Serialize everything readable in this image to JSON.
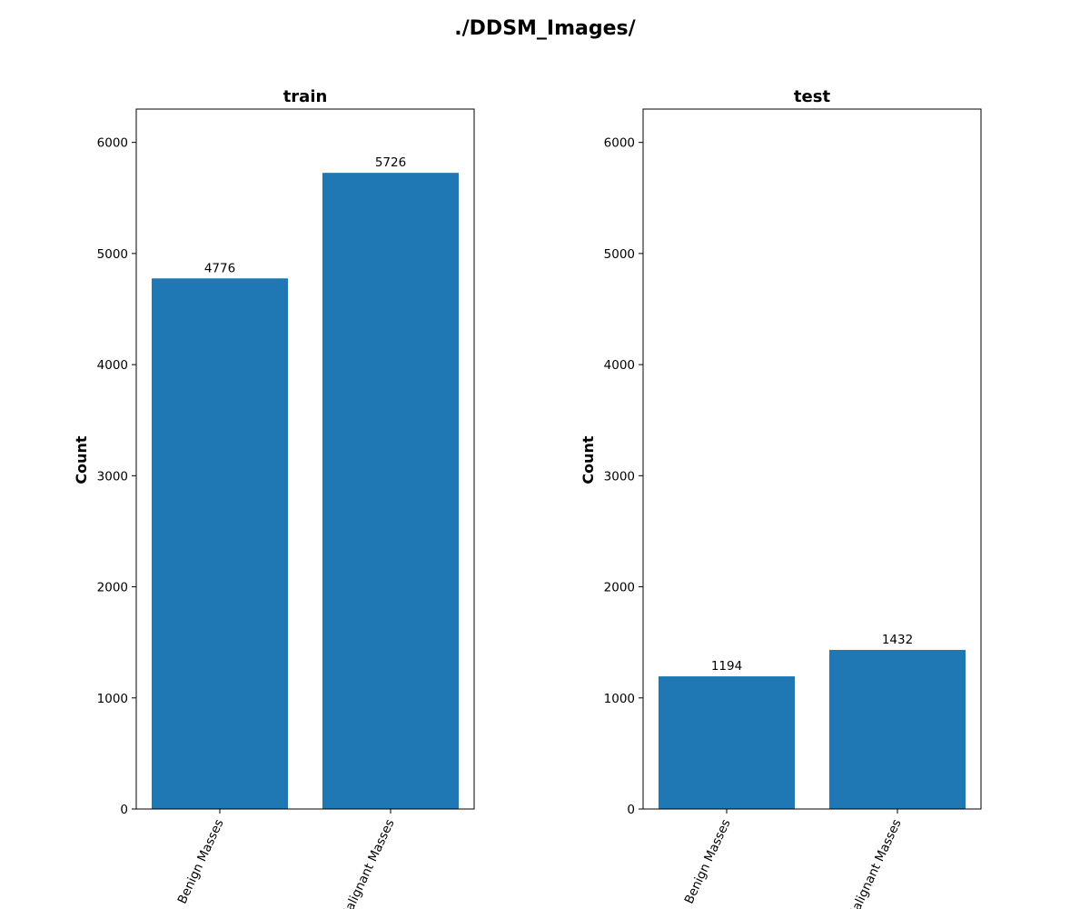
{
  "figure": {
    "suptitle": "./DDSM_Images/"
  },
  "chart_data": [
    {
      "type": "bar",
      "title": "train",
      "xlabel": "",
      "ylabel": "Count",
      "categories": [
        "Benign Masses",
        "Malignant Masses"
      ],
      "values": [
        4776,
        5726
      ],
      "data_labels": [
        "4776",
        "5726"
      ],
      "ylim": [
        0,
        6300
      ],
      "yticks": [
        0,
        1000,
        2000,
        3000,
        4000,
        5000,
        6000
      ],
      "ytick_labels": [
        "0",
        "1000",
        "2000",
        "3000",
        "4000",
        "5000",
        "6000"
      ],
      "bar_color": "#1f77b4",
      "grid": false,
      "legend": "none"
    },
    {
      "type": "bar",
      "title": "test",
      "xlabel": "",
      "ylabel": "Count",
      "categories": [
        "Benign Masses",
        "Malignant Masses"
      ],
      "values": [
        1194,
        1432
      ],
      "data_labels": [
        "1194",
        "1432"
      ],
      "ylim": [
        0,
        6300
      ],
      "yticks": [
        0,
        1000,
        2000,
        3000,
        4000,
        5000,
        6000
      ],
      "ytick_labels": [
        "0",
        "1000",
        "2000",
        "3000",
        "4000",
        "5000",
        "6000"
      ],
      "bar_color": "#1f77b4",
      "grid": false,
      "legend": "none"
    }
  ]
}
